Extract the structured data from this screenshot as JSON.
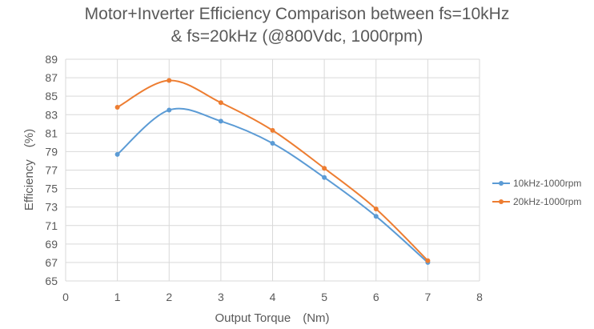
{
  "chart_data": {
    "type": "line",
    "title_lines": [
      "Motor+Inverter Efficiency Comparison between fs=10kHz",
      "& fs=20kHz (@800Vdc, 1000rpm)"
    ],
    "xlabel": "Output Torque　(Nm)",
    "ylabel": "Efficiency　(%)",
    "xlim": [
      0,
      8
    ],
    "ylim": [
      65,
      89
    ],
    "xticks": [
      0,
      1,
      2,
      3,
      4,
      5,
      6,
      7,
      8
    ],
    "yticks": [
      65,
      67,
      69,
      71,
      73,
      75,
      77,
      79,
      81,
      83,
      85,
      87,
      89
    ],
    "grid": true,
    "legend_position": "right",
    "series": [
      {
        "name": "10kHz-1000rpm",
        "color": "#5b9bd5",
        "x": [
          1,
          2,
          3,
          4,
          5,
          6,
          7
        ],
        "y": [
          78.7,
          83.5,
          82.3,
          79.9,
          76.2,
          72.0,
          67.0
        ]
      },
      {
        "name": "20kHz-1000rpm",
        "color": "#ed7d31",
        "x": [
          1,
          2,
          3,
          4,
          5,
          6,
          7
        ],
        "y": [
          83.8,
          86.7,
          84.3,
          81.3,
          77.2,
          72.8,
          67.2
        ]
      }
    ]
  }
}
